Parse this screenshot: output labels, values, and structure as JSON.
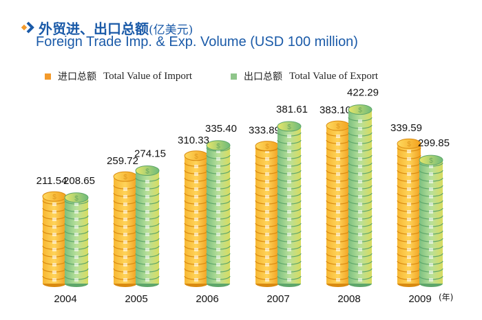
{
  "header": {
    "title_cn": "外贸进、出口总额",
    "title_cn_unit": "(亿美元)",
    "title_en": "Foreign Trade Imp. & Exp. Volume (USD 100 million)"
  },
  "chart_data": {
    "type": "bar",
    "title": "Foreign Trade Imp. & Exp. Volume (USD 100 million)",
    "categories": [
      "2004",
      "2005",
      "2006",
      "2007",
      "2008",
      "2009"
    ],
    "x_unit_suffix": "(年)",
    "series": [
      {
        "name": "进口总额 Total Value of Import",
        "name_cn": "进口总额",
        "name_en": "Total Value of Import",
        "color": "#f5a623",
        "values": [
          211.54,
          259.72,
          310.33,
          333.89,
          383.1,
          339.59
        ]
      },
      {
        "name": "出口总额 Total Value of Export",
        "name_cn": "出口总额",
        "name_en": "Total Value of Export",
        "color": "#8fc58a",
        "values": [
          208.65,
          274.15,
          335.4,
          381.61,
          422.29,
          299.85
        ]
      }
    ],
    "value_labels": [
      [
        "211.54",
        "259.72",
        "310.33",
        "333.89",
        "383.10",
        "339.59"
      ],
      [
        "208.65",
        "274.15",
        "335.40",
        "381.61",
        "422.29",
        "299.85"
      ]
    ],
    "ylim": [
      0,
      430
    ],
    "legend": "top-left",
    "grid": false
  }
}
